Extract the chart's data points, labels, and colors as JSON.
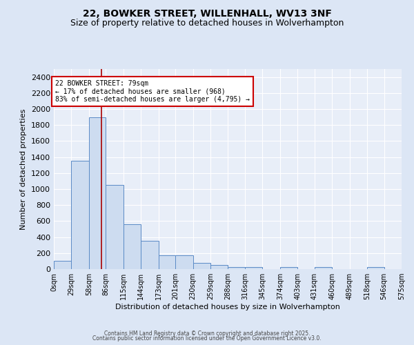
{
  "title1": "22, BOWKER STREET, WILLENHALL, WV13 3NF",
  "title2": "Size of property relative to detached houses in Wolverhampton",
  "xlabel": "Distribution of detached houses by size in Wolverhampton",
  "ylabel": "Number of detached properties",
  "bin_edges": [
    0,
    29,
    58,
    86,
    115,
    144,
    173,
    201,
    230,
    259,
    288,
    316,
    345,
    374,
    403,
    431,
    460,
    489,
    518,
    546,
    575
  ],
  "bar_heights": [
    100,
    1350,
    1900,
    1050,
    560,
    350,
    175,
    175,
    75,
    50,
    25,
    25,
    0,
    25,
    0,
    25,
    0,
    0,
    25,
    0
  ],
  "bar_color": "#cddcf0",
  "bar_edge_color": "#5a8ac6",
  "property_size": 79,
  "red_line_color": "#aa0000",
  "annotation_text": "22 BOWKER STREET: 79sqm\n← 17% of detached houses are smaller (968)\n83% of semi-detached houses are larger (4,795) →",
  "annotation_box_color": "#ffffff",
  "annotation_box_edge_color": "#cc0000",
  "ylim": [
    0,
    2500
  ],
  "yticks": [
    0,
    200,
    400,
    600,
    800,
    1000,
    1200,
    1400,
    1600,
    1800,
    2000,
    2200,
    2400
  ],
  "footer1": "Contains HM Land Registry data © Crown copyright and database right 2025.",
  "footer2": "Contains public sector information licensed under the Open Government Licence v3.0.",
  "background_color": "#dce6f5",
  "plot_background_color": "#e8eef8",
  "grid_color": "#ffffff",
  "title_fontsize": 10,
  "subtitle_fontsize": 9
}
